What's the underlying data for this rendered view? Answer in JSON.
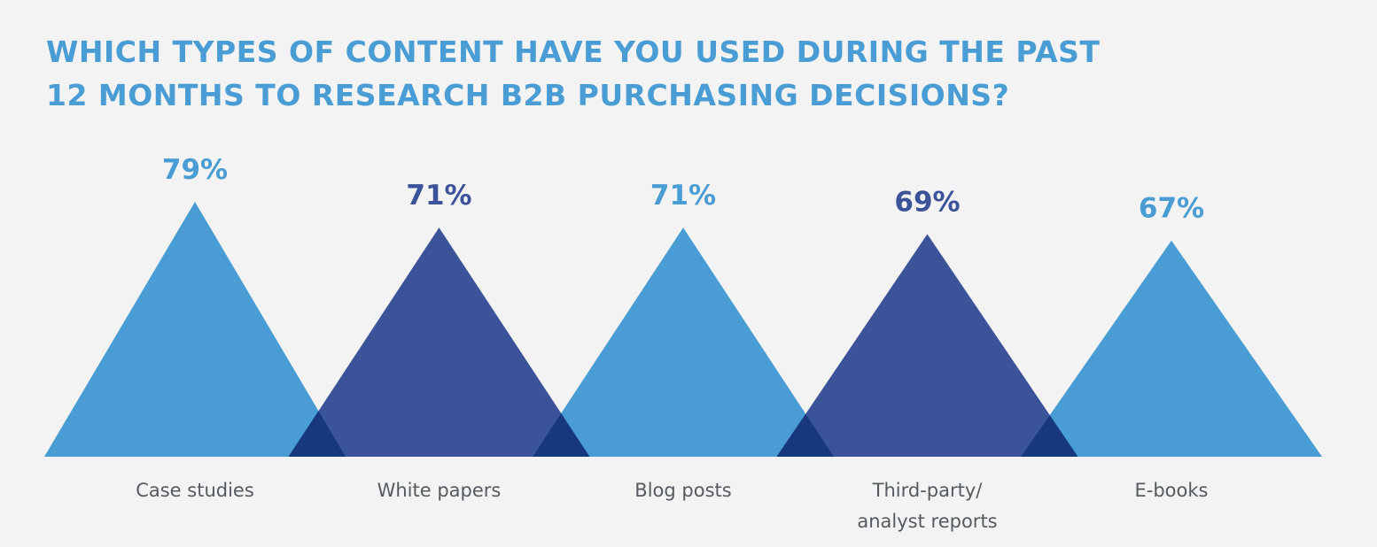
{
  "title_lines": [
    "WHICH TYPES OF CONTENT HAVE YOU USED DURING THE PAST",
    "12 MONTHS TO RESEARCH B2B PURCHASING DECISIONS?"
  ],
  "colors": {
    "light": "#4a9dd4",
    "dark": "#3a5399",
    "overlap": "#17387f",
    "title": "#4a9dd4",
    "label": "#555a60",
    "background": "#f3f3f3"
  },
  "chart_data": {
    "type": "bar",
    "title": "WHICH TYPES OF CONTENT HAVE YOU USED DURING THE PAST 12 MONTHS TO RESEARCH B2B PURCHASING DECISIONS?",
    "categories": [
      [
        "Case studies"
      ],
      [
        "White papers"
      ],
      [
        "Blog posts"
      ],
      [
        "Third-party/",
        "analyst reports"
      ],
      [
        "E-books"
      ]
    ],
    "values": [
      79,
      71,
      71,
      69,
      67
    ],
    "value_labels": [
      "79%",
      "71%",
      "71%",
      "69%",
      "67%"
    ],
    "unit": "%",
    "grid": false,
    "legend": "none"
  }
}
